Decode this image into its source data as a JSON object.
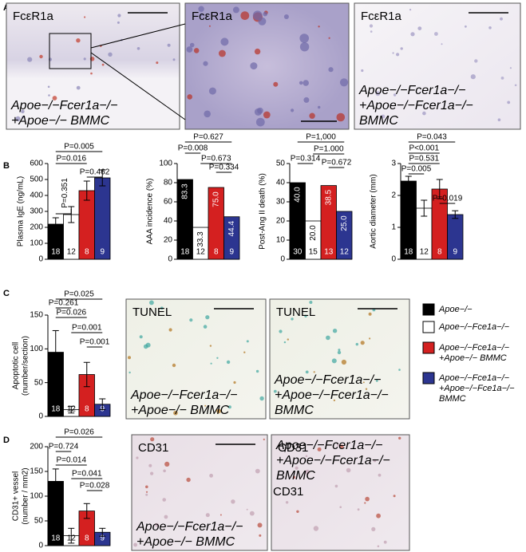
{
  "panel_letters": [
    "A",
    "B",
    "C",
    "D"
  ],
  "images": [
    {
      "label": "FcεR1a",
      "caption": [
        "Apoe−/−Fcer1a−/−",
        "+Apoe−/− BMMC"
      ]
    },
    {
      "label": "FcεR1a"
    },
    {
      "label": "FcεR1a",
      "caption": [
        "Apoe−/−Fcer1a−/−",
        "+Apoe−/−Fcer1a−/−",
        "BMMC"
      ]
    },
    {
      "label": "TUNEL",
      "caption": [
        "Apoe−/−Fcer1a−/−",
        "+Apoe−/− BMMC"
      ]
    },
    {
      "label": "TUNEL",
      "caption": [
        "Apoe−/−Fcer1a−/−",
        "+Apoe−/−Fcer1a−/−",
        "BMMC"
      ]
    },
    {
      "label": "CD31",
      "caption": [
        "Apoe−/−Fcer1a−/−",
        "+Apoe−/− BMMC"
      ]
    },
    {
      "label": "CD31",
      "caption": [
        "Apoe−/−Fcer1a−/−",
        "+Apoe−/−Fcer1a−/−",
        "BMMC"
      ]
    }
  ],
  "legend": [
    {
      "label": [
        "Apoe−/−"
      ],
      "color": "#000000"
    },
    {
      "label": [
        "Apoe−/−Fce1a−/−"
      ],
      "color": "#ffffff"
    },
    {
      "label": [
        "Apoe−/−Fce1a−/−",
        "+Apoe−/− BMMC"
      ],
      "color": "#d42020"
    },
    {
      "label": [
        "Apoe−/−Fce1a−/−",
        "+Apoe−/−Fce1a−/−",
        "BMMC"
      ],
      "color": "#2c3590"
    }
  ],
  "chart_data": [
    {
      "type": "bar",
      "y_label": "Plasma IgE (ng/mL)",
      "ylim": [
        0,
        600
      ],
      "yticks": [
        0,
        100,
        200,
        300,
        400,
        500,
        600
      ],
      "values": [
        220,
        280,
        430,
        510
      ],
      "errors": [
        40,
        50,
        60,
        50
      ],
      "counts": [
        18,
        12,
        8,
        9
      ],
      "colors": [
        "#000000",
        "#ffffff",
        "#d42020",
        "#2c3590"
      ],
      "comparisons": [
        "P=0.005",
        "P=0.016",
        "P=0.462",
        "P=0.351"
      ]
    },
    {
      "type": "bar",
      "y_label": "AAA incidence (%)",
      "ylim": [
        0,
        100
      ],
      "yticks": [
        0,
        20,
        40,
        60,
        80,
        100
      ],
      "values": [
        83.3,
        33.3,
        75,
        44.4
      ],
      "value_labels": [
        "83.3",
        "33.3",
        "75.0",
        "44.4"
      ],
      "counts": [
        18,
        12,
        8,
        9
      ],
      "colors": [
        "#000000",
        "#ffffff",
        "#d42020",
        "#2c3590"
      ],
      "comparisons": [
        "P=0.627",
        "P=0.008",
        "P=0.673",
        "P=0.334"
      ]
    },
    {
      "type": "bar",
      "y_label": "Post-Ang II death (%)",
      "ylim": [
        0,
        50
      ],
      "yticks": [
        0,
        10,
        20,
        30,
        40,
        50
      ],
      "values": [
        40,
        20,
        38.5,
        25
      ],
      "value_labels": [
        "40.0",
        "20.0",
        "38.5",
        "25.0"
      ],
      "counts": [
        30,
        15,
        13,
        12
      ],
      "colors": [
        "#000000",
        "#ffffff",
        "#d42020",
        "#2c3590"
      ],
      "comparisons": [
        "P=1,000",
        "P=1.000",
        "P=0.314",
        "P=0.672"
      ]
    },
    {
      "type": "bar",
      "y_label": "Aortic diameter (mm)",
      "ylim": [
        0,
        3
      ],
      "yticks": [
        0,
        1,
        2,
        3
      ],
      "values": [
        2.45,
        1.6,
        2.2,
        1.4
      ],
      "errors": [
        0.15,
        0.25,
        0.3,
        0.12
      ],
      "counts": [
        18,
        12,
        8,
        9
      ],
      "colors": [
        "#000000",
        "#ffffff",
        "#d42020",
        "#2c3590"
      ],
      "comparisons": [
        "P=0.043",
        "P<0.001",
        "P=0.531",
        "P=0.005",
        "P=0.019"
      ]
    },
    {
      "type": "bar",
      "y_label": "Apoptotic cell",
      "y_label2": "(number/section)",
      "ylim": [
        0,
        150
      ],
      "yticks": [
        0,
        50,
        100,
        150
      ],
      "values": [
        95,
        10,
        62,
        18
      ],
      "errors": [
        32,
        5,
        18,
        8
      ],
      "counts": [
        18,
        12,
        8,
        9
      ],
      "colors": [
        "#000000",
        "#ffffff",
        "#d42020",
        "#2c3590"
      ],
      "comparisons": [
        "P=0.025",
        "P=0.261",
        "P=0.026",
        "P=0.001",
        "P=0.001"
      ]
    },
    {
      "type": "bar",
      "y_label": "CD31+ vessel",
      "y_label2": "(number / mm2)",
      "ylim": [
        0,
        200
      ],
      "yticks": [
        0,
        50,
        100,
        150,
        200
      ],
      "values": [
        130,
        20,
        70,
        27
      ],
      "errors": [
        25,
        15,
        15,
        8
      ],
      "counts": [
        18,
        12,
        8,
        9
      ],
      "colors": [
        "#000000",
        "#ffffff",
        "#d42020",
        "#2c3590"
      ],
      "comparisons": [
        "P=0.026",
        "P=0.724",
        "P=0.014",
        "P=0.041",
        "P=0.028"
      ]
    }
  ]
}
